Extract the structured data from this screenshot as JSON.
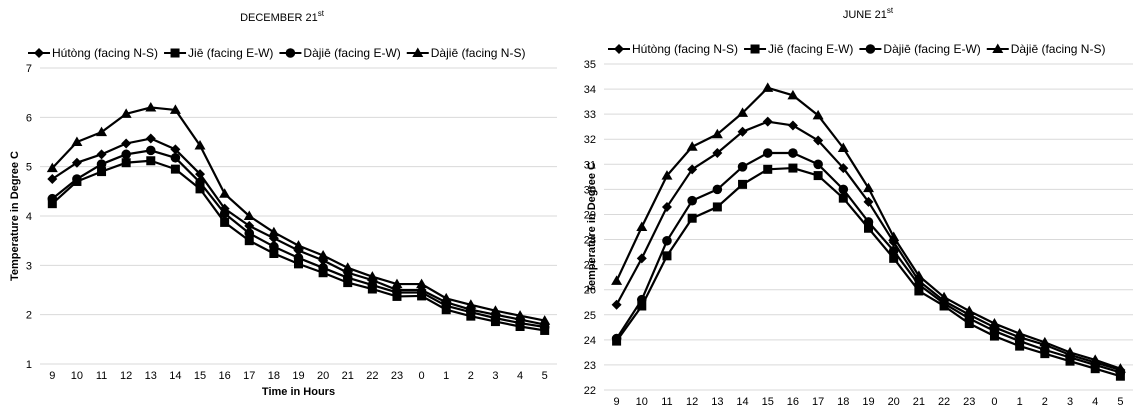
{
  "chart_data": [
    {
      "type": "line",
      "title": "DECEMBER 21",
      "title_sup": "st",
      "xlabel": "Time in Hours",
      "ylabel": "Temperature in Degree C",
      "ylim": [
        1,
        7
      ],
      "yticks": [
        1,
        2,
        3,
        4,
        5,
        6,
        7
      ],
      "grid": true,
      "legend_position": "top",
      "categories": [
        "9",
        "10",
        "11",
        "12",
        "13",
        "14",
        "15",
        "16",
        "17",
        "18",
        "19",
        "20",
        "21",
        "22",
        "23",
        "0",
        "1",
        "2",
        "3",
        "4",
        "5"
      ],
      "series": [
        {
          "name": "Hútòng (facing N-S)",
          "marker": "diamond",
          "values": [
            4.75,
            5.08,
            5.25,
            5.47,
            5.57,
            5.35,
            4.85,
            4.15,
            3.8,
            3.55,
            3.3,
            3.1,
            2.85,
            2.7,
            2.5,
            2.5,
            2.25,
            2.1,
            2.0,
            1.9,
            1.8
          ]
        },
        {
          "name": "Jiē (facing E-W)",
          "marker": "square",
          "values": [
            4.25,
            4.7,
            4.9,
            5.08,
            5.12,
            4.95,
            4.55,
            3.87,
            3.5,
            3.24,
            3.03,
            2.85,
            2.65,
            2.52,
            2.37,
            2.38,
            2.1,
            1.97,
            1.86,
            1.76,
            1.68
          ]
        },
        {
          "name": "Dàjiē (facing E-W)",
          "marker": "circle",
          "values": [
            4.35,
            4.75,
            5.05,
            5.25,
            5.33,
            5.18,
            4.68,
            4.05,
            3.65,
            3.38,
            3.15,
            2.95,
            2.75,
            2.6,
            2.45,
            2.45,
            2.18,
            2.05,
            1.93,
            1.83,
            1.75
          ]
        },
        {
          "name": "Dàjiē (facing N-S)",
          "marker": "triangle",
          "values": [
            4.97,
            5.5,
            5.7,
            6.07,
            6.2,
            6.15,
            5.43,
            4.45,
            4.0,
            3.67,
            3.4,
            3.2,
            2.95,
            2.77,
            2.62,
            2.62,
            2.33,
            2.2,
            2.08,
            1.98,
            1.88
          ]
        }
      ]
    },
    {
      "type": "line",
      "title": "JUNE 21",
      "title_sup": "st",
      "xlabel": "Time in Hours",
      "ylabel": "Temperature in Degree C",
      "ylim": [
        22,
        35
      ],
      "yticks": [
        22,
        23,
        24,
        25,
        26,
        27,
        28,
        29,
        30,
        31,
        32,
        33,
        34,
        35
      ],
      "grid": true,
      "legend_position": "top",
      "categories": [
        "9",
        "10",
        "11",
        "12",
        "13",
        "14",
        "15",
        "16",
        "17",
        "18",
        "19",
        "20",
        "21",
        "22",
        "23",
        "0",
        "1",
        "2",
        "3",
        "4",
        "5"
      ],
      "series": [
        {
          "name": "Hútòng (facing N-S)",
          "marker": "diamond",
          "values": [
            25.4,
            27.25,
            29.3,
            30.8,
            31.45,
            32.3,
            32.7,
            32.55,
            31.95,
            30.85,
            29.5,
            27.9,
            26.35,
            25.55,
            25.0,
            24.5,
            24.1,
            23.8,
            23.4,
            23.1,
            22.8
          ]
        },
        {
          "name": "Jiē (facing E-W)",
          "marker": "square",
          "values": [
            23.95,
            25.35,
            27.35,
            28.85,
            29.3,
            30.2,
            30.8,
            30.85,
            30.55,
            29.65,
            28.45,
            27.25,
            25.95,
            25.35,
            24.65,
            24.15,
            23.75,
            23.45,
            23.15,
            22.85,
            22.55
          ]
        },
        {
          "name": "Dàjiē (facing E-W)",
          "marker": "circle",
          "values": [
            24.05,
            25.6,
            27.95,
            29.55,
            30.0,
            30.9,
            31.45,
            31.45,
            31.0,
            30.0,
            28.7,
            27.55,
            26.2,
            25.45,
            24.85,
            24.35,
            23.95,
            23.6,
            23.3,
            23.0,
            22.7
          ]
        },
        {
          "name": "Dàjiē (facing N-S)",
          "marker": "triangle",
          "values": [
            26.35,
            28.5,
            30.55,
            31.7,
            32.2,
            33.05,
            34.05,
            33.75,
            32.95,
            31.65,
            30.05,
            28.1,
            26.55,
            25.7,
            25.15,
            24.65,
            24.25,
            23.9,
            23.5,
            23.2,
            22.85
          ]
        }
      ]
    }
  ]
}
